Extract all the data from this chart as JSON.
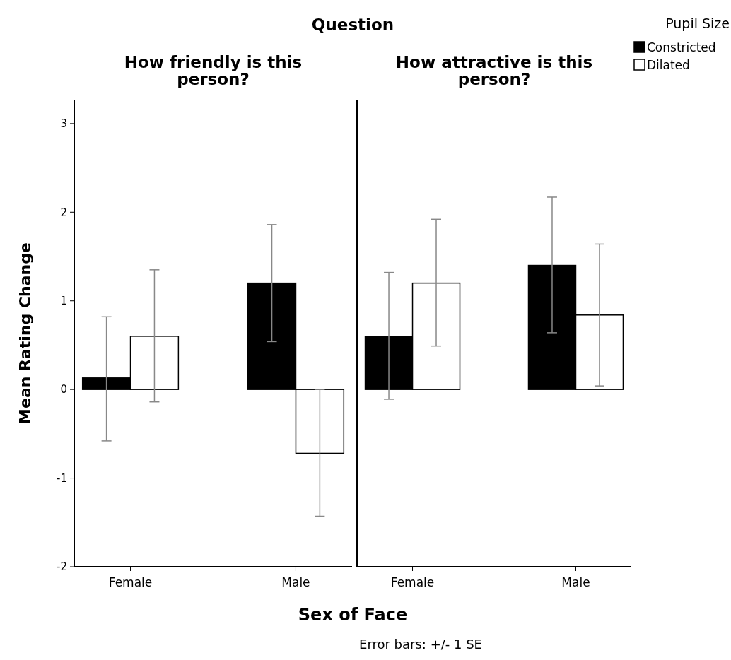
{
  "chart_data": [
    {
      "type": "bar",
      "title": "How friendly is this person?",
      "xlabel": "Sex of Face",
      "ylabel": "Mean Rating Change",
      "annotations": [
        "Question",
        "Error bars: +/- 1 SE"
      ],
      "categories": [
        "Female",
        "Male"
      ],
      "ylim": [
        -2,
        3.27
      ],
      "yticks": [
        -2,
        -1,
        0,
        1,
        2,
        3
      ],
      "grid": false,
      "legend": false,
      "series": [
        {
          "color": "#000000",
          "values": [
            0.13,
            1.2
          ],
          "errors": [
            [
              -0.58,
              0.82
            ],
            [
              0.54,
              1.86
            ]
          ]
        },
        {
          "color": "#ffffff",
          "values": [
            0.6,
            -0.72
          ],
          "errors": [
            [
              -0.14,
              1.35
            ],
            [
              -1.43,
              0.0
            ]
          ]
        }
      ]
    },
    {
      "type": "bar",
      "title": "How attractive is this person?",
      "legend_title": "Pupil Size",
      "legend": "top right",
      "tick_labels": "x",
      "categories": [
        "Female",
        "Male"
      ],
      "ylim": [
        -2,
        3.27
      ],
      "grid": false,
      "series": [
        {
          "name": "Constricted",
          "color": "#000000",
          "values": [
            0.6,
            1.4
          ],
          "errors": [
            [
              -0.11,
              1.32
            ],
            [
              0.64,
              2.17
            ]
          ]
        },
        {
          "name": "Dilated",
          "color": "#ffffff",
          "values": [
            1.2,
            0.84
          ],
          "errors": [
            [
              0.49,
              1.92
            ],
            [
              0.04,
              1.64
            ]
          ]
        }
      ]
    }
  ]
}
